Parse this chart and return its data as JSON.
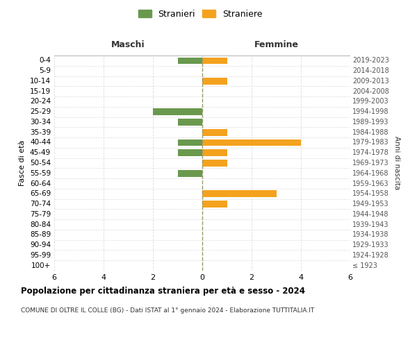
{
  "age_groups": [
    "100+",
    "95-99",
    "90-94",
    "85-89",
    "80-84",
    "75-79",
    "70-74",
    "65-69",
    "60-64",
    "55-59",
    "50-54",
    "45-49",
    "40-44",
    "35-39",
    "30-34",
    "25-29",
    "20-24",
    "15-19",
    "10-14",
    "5-9",
    "0-4"
  ],
  "birth_years": [
    "≤ 1923",
    "1924-1928",
    "1929-1933",
    "1934-1938",
    "1939-1943",
    "1944-1948",
    "1949-1953",
    "1954-1958",
    "1959-1963",
    "1964-1968",
    "1969-1973",
    "1974-1978",
    "1979-1983",
    "1984-1988",
    "1989-1993",
    "1994-1998",
    "1999-2003",
    "2004-2008",
    "2009-2013",
    "2014-2018",
    "2019-2023"
  ],
  "maschi": [
    0,
    0,
    0,
    0,
    0,
    0,
    0,
    0,
    0,
    1,
    0,
    1,
    1,
    0,
    1,
    2,
    0,
    0,
    0,
    0,
    1
  ],
  "femmine": [
    0,
    0,
    0,
    0,
    0,
    0,
    1,
    3,
    0,
    0,
    1,
    1,
    4,
    1,
    0,
    0,
    0,
    0,
    1,
    0,
    1
  ],
  "color_maschi": "#6a994e",
  "color_femmine": "#f4a21e",
  "title": "Popolazione per cittadinanza straniera per età e sesso - 2024",
  "subtitle": "COMUNE DI OLTRE IL COLLE (BG) - Dati ISTAT al 1° gennaio 2024 - Elaborazione TUTTITALIA.IT",
  "ylabel_left": "Fasce di età",
  "ylabel_right": "Anni di nascita",
  "xlabel_left": "Maschi",
  "xlabel_right": "Femmine",
  "legend_stranieri": "Stranieri",
  "legend_straniere": "Straniere",
  "xlim": 6,
  "background_color": "#ffffff",
  "grid_color": "#dddddd"
}
